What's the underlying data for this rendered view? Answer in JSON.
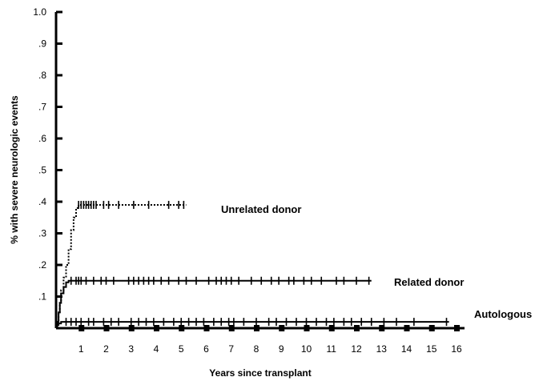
{
  "chart_data": {
    "type": "line",
    "title": "",
    "xlabel": "Years since transplant",
    "ylabel": "% with severe neurologic events",
    "xlim": [
      0,
      16
    ],
    "ylim": [
      0,
      1.0
    ],
    "x_ticks": [
      1,
      2,
      3,
      4,
      5,
      6,
      7,
      8,
      9,
      10,
      11,
      12,
      13,
      14,
      15,
      16
    ],
    "x_tick_labels": [
      "1",
      "2",
      "3",
      "4",
      "5",
      "6",
      "7",
      "8",
      "9",
      "10",
      "11",
      "12",
      "13",
      "14",
      "15",
      "16"
    ],
    "y_ticks": [
      0.1,
      0.2,
      0.3,
      0.4,
      0.5,
      0.6,
      0.7,
      0.8,
      0.9,
      1.0
    ],
    "y_tick_labels": [
      ".1",
      ".2",
      ".3",
      ".4",
      ".5",
      ".6",
      ".7",
      ".8",
      ".9",
      "1.0"
    ],
    "grid": false,
    "legend": "none",
    "series": [
      {
        "name": "Unrelated donor",
        "line_style": "dotted",
        "x": [
          0,
          0.05,
          0.1,
          0.15,
          0.2,
          0.3,
          0.4,
          0.5,
          0.6,
          0.7,
          0.8,
          0.9,
          5.2
        ],
        "y": [
          0,
          0.02,
          0.05,
          0.08,
          0.12,
          0.16,
          0.2,
          0.25,
          0.31,
          0.35,
          0.38,
          0.39,
          0.39
        ],
        "censor_x": [
          0.9,
          1.0,
          1.1,
          1.2,
          1.3,
          1.4,
          1.5,
          1.6,
          1.9,
          2.1,
          2.5,
          3.1,
          3.7,
          4.5,
          4.9,
          5.1
        ]
      },
      {
        "name": "Related donor",
        "line_style": "solid",
        "x": [
          0,
          0.05,
          0.1,
          0.15,
          0.2,
          0.3,
          0.4,
          0.5,
          12.6
        ],
        "y": [
          0,
          0.02,
          0.05,
          0.08,
          0.11,
          0.13,
          0.145,
          0.15,
          0.15
        ],
        "censor_x": [
          0.6,
          0.8,
          0.9,
          1.0,
          1.2,
          1.5,
          1.8,
          2.0,
          2.3,
          2.9,
          3.1,
          3.3,
          3.5,
          3.7,
          3.9,
          4.2,
          4.5,
          4.9,
          5.2,
          5.6,
          6.1,
          6.4,
          6.6,
          6.8,
          7.0,
          7.3,
          7.8,
          8.2,
          8.6,
          8.9,
          9.3,
          9.5,
          9.9,
          10.2,
          10.6,
          11.2,
          11.5,
          12.0,
          12.5
        ]
      },
      {
        "name": "Autologous",
        "line_style": "solid",
        "x": [
          0,
          0.05,
          0.1,
          0.2,
          15.7
        ],
        "y": [
          0,
          0.01,
          0.015,
          0.02,
          0.02
        ],
        "censor_x": [
          0.4,
          0.6,
          0.8,
          1.0,
          1.3,
          1.5,
          1.9,
          2.2,
          2.5,
          3.0,
          3.3,
          3.6,
          3.9,
          4.3,
          4.7,
          5.0,
          5.3,
          5.6,
          5.9,
          6.3,
          6.6,
          6.9,
          7.1,
          7.5,
          8.0,
          8.5,
          8.8,
          9.2,
          9.6,
          10.0,
          10.4,
          10.8,
          11.1,
          11.5,
          11.8,
          12.2,
          12.6,
          13.1,
          13.6,
          14.3,
          15.6
        ]
      }
    ]
  }
}
